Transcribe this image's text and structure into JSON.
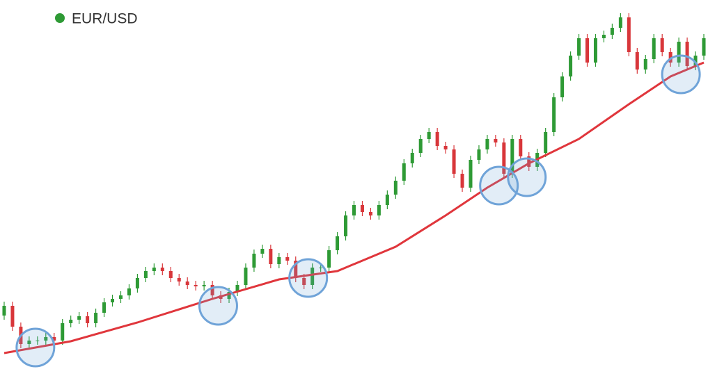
{
  "chart_data": {
    "type": "candlestick",
    "xlim": [
      -0.5,
      84.5
    ],
    "ylim": [
      0,
      564
    ],
    "series": [
      {
        "name": "EUR/USD",
        "color": "#2e9a35",
        "down_color": "#d8363a",
        "open": [
          110,
          124,
          94,
          69,
          74,
          74,
          79,
          74,
          99,
          104,
          109,
          99,
          114,
          129,
          134,
          139,
          149,
          164,
          174,
          179,
          174,
          164,
          159,
          154,
          152,
          154,
          139,
          134,
          144,
          154,
          179,
          199,
          206,
          184,
          194,
          189,
          164,
          154,
          179,
          179,
          204,
          224,
          254,
          269,
          259,
          254,
          269,
          284,
          304,
          329,
          344,
          364,
          374,
          354,
          349,
          314,
          294,
          334,
          349,
          364,
          359,
          314,
          364,
          339,
          324,
          344,
          374,
          424,
          454,
          484,
          509,
          474,
          509,
          514,
          524,
          539,
          489,
          464,
          479,
          509,
          489,
          474,
          504,
          469,
          484
        ],
        "high": [
          130,
          130,
          100,
          80,
          80,
          85,
          85,
          105,
          110,
          115,
          115,
          120,
          135,
          140,
          145,
          155,
          170,
          180,
          185,
          185,
          180,
          170,
          165,
          160,
          160,
          160,
          145,
          150,
          160,
          185,
          205,
          212,
          212,
          200,
          200,
          195,
          170,
          185,
          185,
          210,
          230,
          260,
          275,
          275,
          265,
          275,
          290,
          310,
          335,
          350,
          370,
          380,
          380,
          360,
          355,
          320,
          340,
          355,
          370,
          370,
          365,
          370,
          370,
          345,
          350,
          380,
          430,
          460,
          490,
          515,
          515,
          515,
          520,
          530,
          545,
          545,
          495,
          485,
          515,
          515,
          495,
          510,
          510,
          490,
          515
        ],
        "low": [
          104,
          88,
          63,
          63,
          68,
          68,
          68,
          68,
          93,
          98,
          93,
          93,
          108,
          123,
          128,
          133,
          143,
          158,
          168,
          168,
          158,
          153,
          148,
          146,
          146,
          133,
          128,
          128,
          138,
          148,
          173,
          193,
          178,
          178,
          183,
          158,
          148,
          148,
          173,
          173,
          198,
          218,
          248,
          253,
          248,
          248,
          263,
          278,
          298,
          323,
          338,
          358,
          348,
          343,
          308,
          288,
          288,
          328,
          343,
          353,
          308,
          308,
          333,
          318,
          318,
          338,
          368,
          418,
          448,
          478,
          468,
          468,
          503,
          508,
          518,
          483,
          458,
          458,
          473,
          483,
          468,
          468,
          463,
          463,
          478
        ],
        "close": [
          124,
          94,
          69,
          74,
          74,
          79,
          74,
          99,
          104,
          109,
          99,
          114,
          129,
          134,
          139,
          149,
          164,
          174,
          179,
          174,
          164,
          159,
          154,
          152,
          154,
          139,
          134,
          144,
          154,
          179,
          199,
          206,
          184,
          194,
          189,
          164,
          154,
          179,
          179,
          204,
          224,
          254,
          269,
          259,
          254,
          269,
          284,
          304,
          329,
          344,
          364,
          374,
          354,
          349,
          314,
          294,
          334,
          349,
          364,
          359,
          314,
          364,
          339,
          324,
          344,
          374,
          424,
          454,
          484,
          509,
          474,
          509,
          514,
          524,
          539,
          489,
          464,
          479,
          509,
          489,
          474,
          504,
          469,
          484,
          509
        ]
      }
    ],
    "moving_average": {
      "color": "#e0363c",
      "x": [
        0,
        8,
        16,
        25,
        33,
        40,
        47,
        53,
        58,
        63,
        69,
        75,
        80,
        84
      ],
      "values": [
        56,
        73,
        100,
        134,
        162,
        174,
        209,
        254,
        294,
        329,
        364,
        414,
        454,
        474
      ]
    },
    "highlights": {
      "color": "#6fa3d8",
      "x": [
        3.75,
        25.7,
        36.5,
        59.4,
        62.75,
        81.25
      ],
      "values": [
        64,
        124,
        164,
        297,
        309,
        457
      ]
    },
    "legend": "top-left"
  }
}
